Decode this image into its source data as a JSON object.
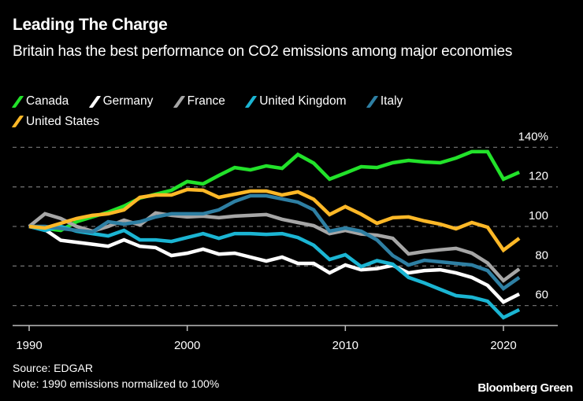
{
  "header": {
    "title": "Leading The Charge",
    "subtitle": "Britain has the best performance on CO2 emissions among major economies"
  },
  "footer": {
    "source": "Source: EDGAR",
    "note": "Note: 1990 emissions normalized to 100%",
    "brand": "Bloomberg Green"
  },
  "chart_data": {
    "type": "line",
    "title": "Leading The Charge",
    "subtitle": "Britain has the best performance on CO2 emissions among major economies",
    "xlabel": "",
    "ylabel": "",
    "x": [
      1990,
      1991,
      1992,
      1993,
      1994,
      1995,
      1996,
      1997,
      1998,
      1999,
      2000,
      2001,
      2002,
      2003,
      2004,
      2005,
      2006,
      2007,
      2008,
      2009,
      2010,
      2011,
      2012,
      2013,
      2014,
      2015,
      2016,
      2017,
      2018,
      2019,
      2020,
      2021
    ],
    "xlim": [
      1990,
      2023.5
    ],
    "ylim": [
      52,
      146
    ],
    "x_ticks": [
      1990,
      2000,
      2010,
      2020
    ],
    "x_tick_labels": [
      "1990",
      "2000",
      "2010",
      "2020"
    ],
    "y_ticks": [
      60,
      80,
      100,
      120,
      140
    ],
    "y_tick_labels": [
      "60",
      "80",
      "100",
      "120",
      "140%"
    ],
    "grid": true,
    "grid_style": "dashed-horizontal",
    "y_axis_side": "right",
    "legend_position": "top-left",
    "series": [
      {
        "name": "Canada",
        "color": "#22e22a",
        "values": [
          100,
          99,
          98,
          102.4,
          104.8,
          107.2,
          110.3,
          114.3,
          116.3,
          118.3,
          122.7,
          121.5,
          125.8,
          129.8,
          128.6,
          130.6,
          129.4,
          136.4,
          132,
          123.9,
          127,
          130.2,
          129.8,
          132.2,
          133.4,
          132.6,
          132.2,
          134.6,
          137.8,
          137.8,
          123.9,
          127.4
        ]
      },
      {
        "name": "Germany",
        "color": "#ffffff",
        "values": [
          100,
          98.4,
          93,
          92,
          91,
          90,
          93.2,
          90,
          89.3,
          85.3,
          86.5,
          88.5,
          86,
          86.5,
          84.5,
          82.5,
          84.5,
          81.3,
          81.3,
          76.5,
          80.5,
          78.1,
          78.7,
          80.3,
          76.5,
          77.7,
          78.1,
          76.5,
          74.2,
          70.2,
          61.8,
          65.8
        ]
      },
      {
        "name": "France",
        "color": "#a6a6a6",
        "values": [
          100,
          106.4,
          104,
          100,
          97.6,
          100,
          103.2,
          100.8,
          106.8,
          105.6,
          104.8,
          105.2,
          104.4,
          105.2,
          105.6,
          106,
          103.6,
          102,
          100.4,
          96.4,
          98,
          96.2,
          95.6,
          94,
          86.1,
          87.3,
          88.2,
          88.9,
          86.5,
          81.5,
          72.6,
          78.5
        ]
      },
      {
        "name": "United Kingdom",
        "color": "#1bb5d3",
        "values": [
          100,
          98,
          100,
          97.6,
          96.4,
          95.2,
          98,
          93.2,
          93.2,
          92.4,
          94.4,
          96.4,
          94,
          96.4,
          96.4,
          96,
          96.4,
          94.4,
          90.5,
          83.3,
          85.7,
          79.7,
          82.7,
          80.9,
          74.2,
          71.4,
          68.2,
          65,
          64.2,
          62.2,
          53.9,
          57.9
        ]
      },
      {
        "name": "Italy",
        "color": "#2e7fa3",
        "values": [
          100,
          100,
          99,
          98,
          97.2,
          102.4,
          101.2,
          102.4,
          104.8,
          106.4,
          106.4,
          106.4,
          108.4,
          112.7,
          115.5,
          115.5,
          113.9,
          112.3,
          108.4,
          97.6,
          99.2,
          97.6,
          93.2,
          85.3,
          80.5,
          82.9,
          82.1,
          81.3,
          80.5,
          77.7,
          68.6,
          74.2
        ]
      },
      {
        "name": "United States",
        "color": "#fdb827",
        "values": [
          100,
          99.2,
          101.6,
          104,
          105.6,
          106.4,
          108.4,
          114.7,
          115.9,
          115.9,
          118.7,
          118.3,
          114.7,
          116.3,
          117.9,
          117.9,
          115.9,
          117.5,
          113.7,
          106,
          110,
          106.2,
          101.6,
          104.4,
          104.8,
          102.8,
          101.2,
          98.8,
          102,
          99.6,
          88,
          94
        ]
      }
    ]
  }
}
